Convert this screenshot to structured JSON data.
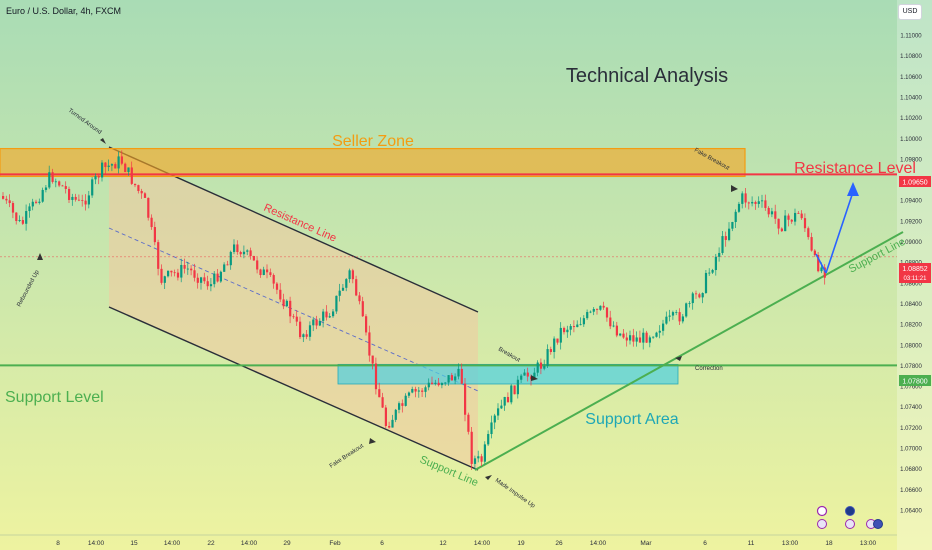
{
  "header": {
    "symbol": "Euro / U.S. Dollar, 4h, FXCM",
    "currency_button": "USD"
  },
  "annotations": {
    "title": "Technical Analysis",
    "seller_zone": "Seller Zone",
    "resistance_level": "Resistance Level",
    "resistance_line": "Resistance Line",
    "support_level": "Support Level",
    "support_area": "Support Area",
    "support_line_bottom": "Support Line",
    "support_line_right": "Support Line",
    "turned_around": "Turned Around",
    "rebounded_up": "Rebounded Up",
    "fake_breakout_top": "Fake Breakout",
    "fake_breakout_bottom": "Fake Breakout",
    "breakout": "Breakout",
    "correction": "Correction",
    "made_impulse_up": "Made Impulse Up"
  },
  "price_tags": {
    "resistance": "1.09650",
    "current_price": "1.08852",
    "countdown": "03:11:21",
    "support": "1.07800"
  },
  "colors": {
    "resistance": "#f23645",
    "support": "#4caf50",
    "seller_zone": "#f5a623",
    "support_area": "#4dd0e1",
    "up_candle": "#089981",
    "down_candle": "#f23645",
    "projection": "#2962ff"
  },
  "chart_data": {
    "type": "candlestick",
    "symbol": "EUR/USD",
    "timeframe": "4h",
    "y_ticks": [
      "1.11000",
      "1.10800",
      "1.10600",
      "1.10400",
      "1.10200",
      "1.10000",
      "1.09800",
      "1.09600",
      "1.09400",
      "1.09200",
      "1.09000",
      "1.08800",
      "1.08600",
      "1.08400",
      "1.08200",
      "1.08000",
      "1.07800",
      "1.07600",
      "1.07400",
      "1.07200",
      "1.07000",
      "1.06800",
      "1.06600",
      "1.06400"
    ],
    "x_ticks": [
      "8",
      "14:00",
      "15",
      "14:00",
      "22",
      "14:00",
      "29",
      "Feb",
      "6",
      "12",
      "14:00",
      "19",
      "26",
      "14:00",
      "Mar",
      "6",
      "11",
      "13:00",
      "18",
      "13:00"
    ],
    "ylim": [
      1.0635,
      1.1125
    ],
    "levels": {
      "resistance_level": 1.0965,
      "support_level": 1.078,
      "current_price": 1.08852
    },
    "zones": {
      "seller_zone": [
        1.0963,
        1.099
      ],
      "support_area": [
        1.0762,
        1.0781
      ]
    },
    "price_path": [
      {
        "x": "Jan 4",
        "close": 1.094
      },
      {
        "x": "Jan 6",
        "close": 1.0925
      },
      {
        "x": "Jan 8",
        "close": 1.093
      },
      {
        "x": "Jan 10",
        "close": 1.095
      },
      {
        "x": "Jan 12",
        "close": 1.0955
      },
      {
        "x": "Jan 14",
        "close": 1.097
      },
      {
        "x": "Jan 16",
        "close": 1.0935
      },
      {
        "x": "Jan 18",
        "close": 1.088
      },
      {
        "x": "Jan 20",
        "close": 1.0895
      },
      {
        "x": "Jan 22",
        "close": 1.0885
      },
      {
        "x": "Jan 24",
        "close": 1.0905
      },
      {
        "x": "Jan 25",
        "close": 1.088
      },
      {
        "x": "Jan 26",
        "close": 1.085
      },
      {
        "x": "Jan 29",
        "close": 1.083
      },
      {
        "x": "Jan 31",
        "close": 1.086
      },
      {
        "x": "Feb 1",
        "close": 1.0885
      },
      {
        "x": "Feb 2",
        "close": 1.081
      },
      {
        "x": "Feb 5",
        "close": 1.075
      },
      {
        "x": "Feb 6",
        "close": 1.074
      },
      {
        "x": "Feb 8",
        "close": 1.077
      },
      {
        "x": "Feb 10",
        "close": 1.0785
      },
      {
        "x": "Feb 12",
        "close": 1.079
      },
      {
        "x": "Feb 13",
        "close": 1.0745
      },
      {
        "x": "Feb 14",
        "close": 1.0708
      },
      {
        "x": "Feb 15",
        "close": 1.0725
      },
      {
        "x": "Feb 17",
        "close": 1.075
      },
      {
        "x": "Feb 19",
        "close": 1.0775
      },
      {
        "x": "Feb 21",
        "close": 1.0795
      },
      {
        "x": "Feb 22",
        "close": 1.082
      },
      {
        "x": "Feb 26",
        "close": 1.084
      },
      {
        "x": "Feb 27",
        "close": 1.0835
      },
      {
        "x": "Feb 29",
        "close": 1.0815
      },
      {
        "x": "Mar 1",
        "close": 1.081
      },
      {
        "x": "Mar 3",
        "close": 1.0845
      },
      {
        "x": "Mar 5",
        "close": 1.0865
      },
      {
        "x": "Mar 6",
        "close": 1.089
      },
      {
        "x": "Mar 8",
        "close": 1.093
      },
      {
        "x": "Mar 11",
        "close": 1.0935
      },
      {
        "x": "Mar 12",
        "close": 1.0915
      },
      {
        "x": "Mar 13",
        "close": 1.094
      },
      {
        "x": "Mar 14",
        "close": 1.0945
      },
      {
        "x": "Mar 15",
        "close": 1.089
      },
      {
        "x": "Mar 18",
        "close": 1.0873
      },
      {
        "x": "Mar 19",
        "close": 1.0885
      }
    ],
    "projection": [
      {
        "x": "Mar 19",
        "y": 1.0873
      },
      {
        "x": "Mar 21",
        "y": 1.096
      }
    ]
  }
}
